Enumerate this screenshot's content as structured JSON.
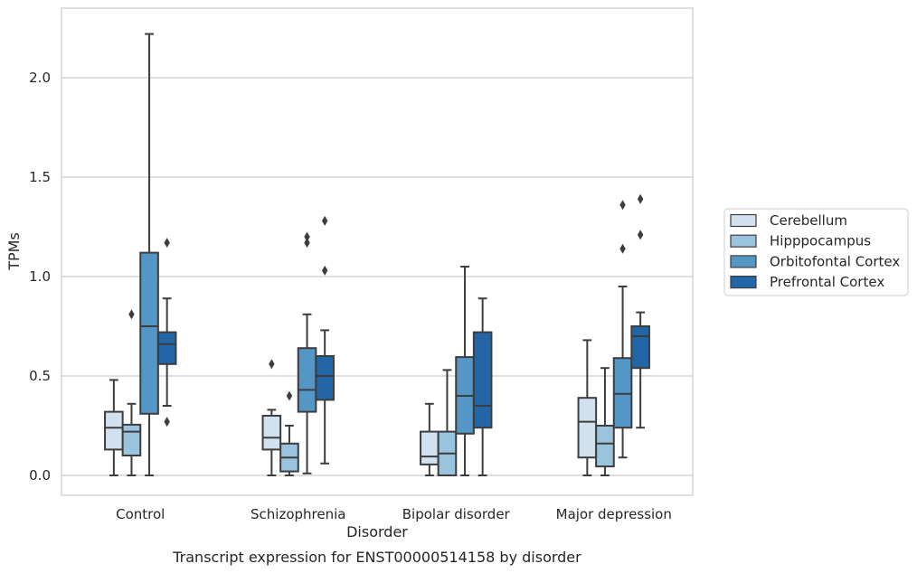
{
  "chart_data": {
    "type": "boxplot",
    "title": "",
    "caption": "Transcript expression for ENST00000514158 by disorder",
    "xlabel": "Disorder",
    "ylabel": "TPMs",
    "ylim": [
      -0.1,
      2.35
    ],
    "yticks": [
      0.0,
      0.5,
      1.0,
      1.5,
      2.0
    ],
    "ytick_labels": [
      "0.0",
      "0.5",
      "1.0",
      "1.5",
      "2.0"
    ],
    "grid": "horizontal",
    "legend_position": "right",
    "categories": [
      "Control",
      "Schizophrenia",
      "Bipolar disorder",
      "Major depression"
    ],
    "series": [
      {
        "name": "Cerebellum",
        "color": "#d1e1f0",
        "boxes": [
          {
            "whisker_low": 0.0,
            "q1": 0.13,
            "median": 0.24,
            "q3": 0.32,
            "whisker_high": 0.48,
            "outliers": []
          },
          {
            "whisker_low": 0.0,
            "q1": 0.13,
            "median": 0.19,
            "q3": 0.3,
            "whisker_high": 0.33,
            "outliers": [
              0.56
            ]
          },
          {
            "whisker_low": 0.0,
            "q1": 0.055,
            "median": 0.095,
            "q3": 0.22,
            "whisker_high": 0.36,
            "outliers": []
          },
          {
            "whisker_low": 0.0,
            "q1": 0.09,
            "median": 0.27,
            "q3": 0.39,
            "whisker_high": 0.68,
            "outliers": []
          }
        ]
      },
      {
        "name": "Hipppocampus",
        "color": "#9ac3de",
        "boxes": [
          {
            "whisker_low": 0.0,
            "q1": 0.1,
            "median": 0.22,
            "q3": 0.255,
            "whisker_high": 0.36,
            "outliers": [
              0.81
            ]
          },
          {
            "whisker_low": 0.0,
            "q1": 0.02,
            "median": 0.09,
            "q3": 0.16,
            "whisker_high": 0.25,
            "outliers": [
              0.4
            ]
          },
          {
            "whisker_low": 0.0,
            "q1": 0.0,
            "median": 0.11,
            "q3": 0.22,
            "whisker_high": 0.53,
            "outliers": []
          },
          {
            "whisker_low": 0.0,
            "q1": 0.045,
            "median": 0.16,
            "q3": 0.25,
            "whisker_high": 0.54,
            "outliers": []
          }
        ]
      },
      {
        "name": "Orbitofontal Cortex",
        "color": "#5497c6",
        "boxes": [
          {
            "whisker_low": 0.0,
            "q1": 0.31,
            "median": 0.75,
            "q3": 1.12,
            "whisker_high": 2.22,
            "outliers": []
          },
          {
            "whisker_low": 0.01,
            "q1": 0.32,
            "median": 0.43,
            "q3": 0.64,
            "whisker_high": 0.81,
            "outliers": [
              1.17,
              1.2
            ]
          },
          {
            "whisker_low": 0.0,
            "q1": 0.21,
            "median": 0.4,
            "q3": 0.595,
            "whisker_high": 1.05,
            "outliers": []
          },
          {
            "whisker_low": 0.09,
            "q1": 0.24,
            "median": 0.41,
            "q3": 0.59,
            "whisker_high": 0.95,
            "outliers": [
              1.14,
              1.36
            ]
          }
        ]
      },
      {
        "name": "Prefrontal Cortex",
        "color": "#2266a8",
        "boxes": [
          {
            "whisker_low": 0.35,
            "q1": 0.56,
            "median": 0.66,
            "q3": 0.72,
            "whisker_high": 0.89,
            "outliers": [
              0.27,
              1.17
            ]
          },
          {
            "whisker_low": 0.06,
            "q1": 0.38,
            "median": 0.5,
            "q3": 0.6,
            "whisker_high": 0.73,
            "outliers": [
              1.03,
              1.28
            ]
          },
          {
            "whisker_low": 0.0,
            "q1": 0.24,
            "median": 0.35,
            "q3": 0.72,
            "whisker_high": 0.89,
            "outliers": []
          },
          {
            "whisker_low": 0.24,
            "q1": 0.54,
            "median": 0.7,
            "q3": 0.75,
            "whisker_high": 0.82,
            "outliers": [
              1.21,
              1.39
            ]
          }
        ]
      }
    ]
  }
}
